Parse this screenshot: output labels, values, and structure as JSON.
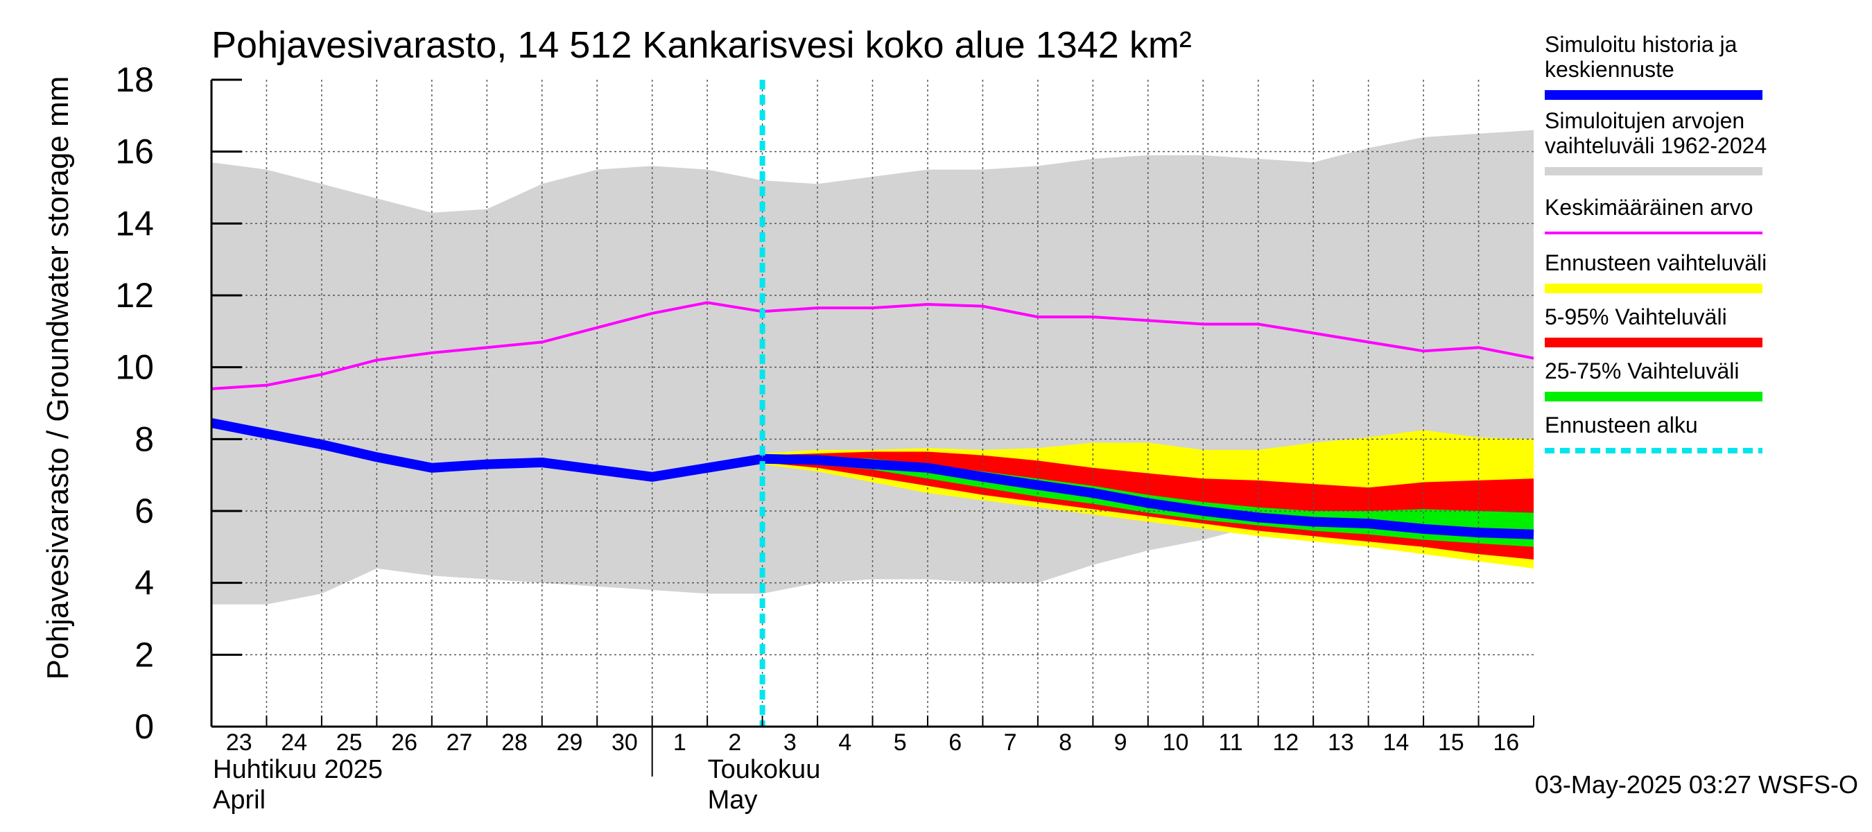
{
  "chart_data": {
    "type": "area",
    "title": "Pohjavesivarasto, 14 512 Kankarisvesi koko alue 1342 km²",
    "ylabel": "Pohjavesivarasto / Groundwater storage   mm",
    "ylim": [
      0,
      18
    ],
    "yticks": [
      0,
      2,
      4,
      6,
      8,
      10,
      12,
      14,
      16,
      18
    ],
    "xlim": [
      0,
      24
    ],
    "x_day_labels": [
      "23",
      "24",
      "25",
      "26",
      "27",
      "28",
      "29",
      "30",
      "1",
      "2",
      "3",
      "4",
      "5",
      "6",
      "7",
      "8",
      "9",
      "10",
      "11",
      "12",
      "13",
      "14",
      "15",
      "16"
    ],
    "month_labels": [
      {
        "fi": "Huhtikuu  2025",
        "en": "April",
        "at_day": 0
      },
      {
        "fi": "Toukokuu",
        "en": "May",
        "at_day": 8
      }
    ],
    "month_divider_day": 8,
    "forecast_start_day": 10,
    "timestamp": "03-May-2025 03:27 WSFS-O",
    "colors": {
      "history": "#0000ff",
      "range": "#d3d3d3",
      "mean": "#ff00ff",
      "forecast_range": "#ffff00",
      "p5_95": "#ff0000",
      "p25_75": "#00ee00",
      "forecast_start": "#00e5ee"
    },
    "legend": [
      {
        "key": "history",
        "label": [
          "Simuloitu historia ja",
          "keskiennuste"
        ]
      },
      {
        "key": "range",
        "label": [
          "Simuloitujen arvojen",
          "vaihteluväli 1962-2024"
        ]
      },
      {
        "key": "mean",
        "label": [
          "Keskimääräinen arvo"
        ]
      },
      {
        "key": "forecast_range",
        "label": [
          "Ennusteen vaihteluväli"
        ]
      },
      {
        "key": "p5_95",
        "label": [
          "5-95% Vaihteluväli"
        ]
      },
      {
        "key": "p25_75",
        "label": [
          "25-75% Vaihteluväli"
        ]
      },
      {
        "key": "forecast_start",
        "label": [
          "Ennusteen alku"
        ]
      }
    ],
    "series": {
      "range_upper": {
        "x": [
          0,
          1,
          2,
          3,
          4,
          5,
          6,
          7,
          8,
          9,
          10,
          11,
          12,
          13,
          14,
          15,
          16,
          17,
          18,
          19,
          20,
          21,
          22,
          23,
          24
        ],
        "y": [
          15.7,
          15.5,
          15.1,
          14.7,
          14.3,
          14.4,
          15.1,
          15.5,
          15.6,
          15.5,
          15.2,
          15.1,
          15.3,
          15.5,
          15.5,
          15.6,
          15.8,
          15.9,
          15.9,
          15.8,
          15.7,
          16.1,
          16.4,
          16.5,
          16.6
        ]
      },
      "range_lower": {
        "x": [
          0,
          1,
          2,
          3,
          4,
          5,
          6,
          7,
          8,
          9,
          10,
          11,
          12,
          13,
          14,
          15,
          16,
          17,
          18,
          19,
          20,
          21,
          22,
          23,
          24
        ],
        "y": [
          3.4,
          3.4,
          3.7,
          4.4,
          4.2,
          4.1,
          4.0,
          3.9,
          3.8,
          3.7,
          3.7,
          4.0,
          4.1,
          4.1,
          4.0,
          4.0,
          4.5,
          4.9,
          5.2,
          5.6,
          6.0,
          6.0,
          5.8,
          6.0,
          6.1
        ]
      },
      "mean": {
        "x": [
          0,
          1,
          2,
          3,
          4,
          5,
          6,
          7,
          8,
          9,
          10,
          11,
          12,
          13,
          14,
          15,
          16,
          17,
          18,
          19,
          20,
          21,
          22,
          23,
          24
        ],
        "y": [
          9.4,
          9.5,
          9.8,
          10.2,
          10.4,
          10.55,
          10.7,
          11.1,
          11.5,
          11.8,
          11.55,
          11.65,
          11.65,
          11.75,
          11.7,
          11.4,
          11.4,
          11.3,
          11.2,
          11.2,
          10.95,
          10.7,
          10.45,
          10.55,
          10.25
        ]
      },
      "history": {
        "x": [
          0,
          1,
          2,
          3,
          4,
          5,
          6,
          7,
          8,
          9,
          10
        ],
        "y": [
          8.45,
          8.15,
          7.85,
          7.5,
          7.2,
          7.3,
          7.35,
          7.15,
          6.95,
          7.2,
          7.45
        ]
      },
      "forecast_max": {
        "x": [
          10,
          11,
          12,
          13,
          14,
          15,
          16,
          17,
          18,
          19,
          20,
          21,
          22,
          23,
          24
        ],
        "y": [
          7.6,
          7.7,
          7.7,
          7.75,
          7.7,
          7.75,
          7.9,
          7.9,
          7.7,
          7.7,
          7.9,
          8.05,
          8.25,
          8.05,
          8.0
        ]
      },
      "forecast_min": {
        "x": [
          10,
          11,
          12,
          13,
          14,
          15,
          16,
          17,
          18,
          19,
          20,
          21,
          22,
          23,
          24
        ],
        "y": [
          7.3,
          7.1,
          6.8,
          6.5,
          6.3,
          6.1,
          5.9,
          5.7,
          5.5,
          5.3,
          5.15,
          5.0,
          4.8,
          4.6,
          4.4
        ]
      },
      "p95": {
        "x": [
          10,
          11,
          12,
          13,
          14,
          15,
          16,
          17,
          18,
          19,
          20,
          21,
          22,
          23,
          24
        ],
        "y": [
          7.55,
          7.6,
          7.65,
          7.65,
          7.55,
          7.4,
          7.2,
          7.05,
          6.9,
          6.85,
          6.75,
          6.65,
          6.8,
          6.85,
          6.9
        ]
      },
      "p5": {
        "x": [
          10,
          11,
          12,
          13,
          14,
          15,
          16,
          17,
          18,
          19,
          20,
          21,
          22,
          23,
          24
        ],
        "y": [
          7.35,
          7.2,
          6.95,
          6.7,
          6.45,
          6.25,
          6.05,
          5.85,
          5.65,
          5.45,
          5.3,
          5.15,
          5.0,
          4.8,
          4.65
        ]
      },
      "p75": {
        "x": [
          10,
          11,
          12,
          13,
          14,
          15,
          16,
          17,
          18,
          19,
          20,
          21,
          22,
          23,
          24
        ],
        "y": [
          7.5,
          7.5,
          7.45,
          7.3,
          7.1,
          6.9,
          6.7,
          6.45,
          6.25,
          6.1,
          6.0,
          6.0,
          6.05,
          6.0,
          5.95
        ]
      },
      "p25": {
        "x": [
          10,
          11,
          12,
          13,
          14,
          15,
          16,
          17,
          18,
          19,
          20,
          21,
          22,
          23,
          24
        ],
        "y": [
          7.4,
          7.3,
          7.15,
          6.9,
          6.65,
          6.4,
          6.2,
          5.95,
          5.75,
          5.6,
          5.45,
          5.35,
          5.2,
          5.1,
          5.0
        ]
      },
      "median": {
        "x": [
          10,
          11,
          12,
          13,
          14,
          15,
          16,
          17,
          18,
          19,
          20,
          21,
          22,
          23,
          24
        ],
        "y": [
          7.45,
          7.42,
          7.3,
          7.2,
          6.95,
          6.72,
          6.5,
          6.22,
          6.0,
          5.82,
          5.7,
          5.65,
          5.5,
          5.4,
          5.35
        ]
      }
    }
  }
}
